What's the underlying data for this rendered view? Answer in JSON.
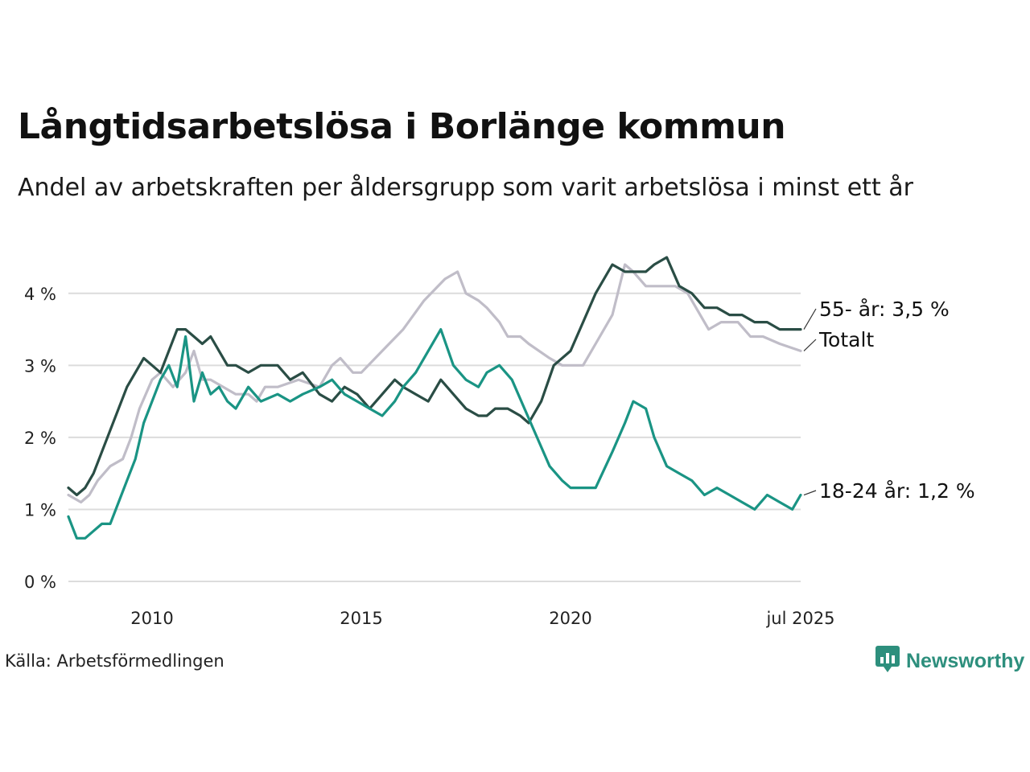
{
  "header": {
    "title": "Långtidsarbetslösa i Borlänge kommun",
    "subtitle": "Andel av arbetskraften per åldersgrupp som varit arbetslösa i minst ett år"
  },
  "footer": {
    "source": "Källa: Arbetsförmedlingen",
    "brand": "Newsworthy",
    "brand_icon": "newsworthy-logo-icon",
    "brand_color": "#2d8f7d"
  },
  "chart_data": {
    "type": "line",
    "title": "Långtidsarbetslösa i Borlänge kommun",
    "subtitle": "Andel av arbetskraften per åldersgrupp som varit arbetslösa i minst ett år",
    "xlabel": "",
    "ylabel": "",
    "xlim": [
      2008.0,
      2025.5
    ],
    "ylim": [
      0,
      4.5
    ],
    "y_ticks": [
      0,
      1,
      2,
      3,
      4
    ],
    "y_tick_labels": [
      "0 %",
      "1 %",
      "2 %",
      "3 %",
      "4 %"
    ],
    "x_ticks": [
      2010,
      2015,
      2020,
      2025.5
    ],
    "x_tick_labels": [
      "2010",
      "2015",
      "2020",
      "jul 2025"
    ],
    "grid": "horizontal",
    "legend": "direct labels at line ends (right)",
    "series": [
      {
        "name": "Totalt",
        "end_label": "Totalt",
        "color": "#c0bdc8",
        "x": [
          2008.0,
          2008.3,
          2008.5,
          2008.7,
          2009.0,
          2009.3,
          2009.5,
          2009.7,
          2010.0,
          2010.2,
          2010.5,
          2010.8,
          2011.0,
          2011.2,
          2011.4,
          2011.7,
          2012.0,
          2012.3,
          2012.5,
          2012.7,
          2013.0,
          2013.5,
          2014.0,
          2014.3,
          2014.5,
          2014.8,
          2015.0,
          2015.5,
          2016.0,
          2016.5,
          2017.0,
          2017.3,
          2017.5,
          2017.8,
          2018.0,
          2018.3,
          2018.5,
          2018.8,
          2019.0,
          2019.5,
          2019.8,
          2020.0,
          2020.3,
          2020.6,
          2021.0,
          2021.3,
          2021.5,
          2021.8,
          2022.0,
          2022.5,
          2022.8,
          2023.0,
          2023.3,
          2023.6,
          2024.0,
          2024.3,
          2024.6,
          2025.0,
          2025.5
        ],
        "y": [
          1.2,
          1.1,
          1.2,
          1.4,
          1.6,
          1.7,
          2.0,
          2.4,
          2.8,
          2.9,
          2.7,
          2.9,
          3.2,
          2.8,
          2.8,
          2.7,
          2.6,
          2.6,
          2.5,
          2.7,
          2.7,
          2.8,
          2.7,
          3.0,
          3.1,
          2.9,
          2.9,
          3.2,
          3.5,
          3.9,
          4.2,
          4.3,
          4.0,
          3.9,
          3.8,
          3.6,
          3.4,
          3.4,
          3.3,
          3.1,
          3.0,
          3.0,
          3.0,
          3.3,
          3.7,
          4.4,
          4.3,
          4.1,
          4.1,
          4.1,
          4.0,
          3.8,
          3.5,
          3.6,
          3.6,
          3.4,
          3.4,
          3.3,
          3.2
        ]
      },
      {
        "name": "55-",
        "end_label": "55- år: 3,5 %",
        "color": "#2a4d45",
        "x": [
          2008.0,
          2008.2,
          2008.4,
          2008.6,
          2008.8,
          2009.0,
          2009.2,
          2009.4,
          2009.6,
          2009.8,
          2010.0,
          2010.2,
          2010.4,
          2010.6,
          2010.8,
          2011.0,
          2011.2,
          2011.4,
          2011.6,
          2011.8,
          2012.0,
          2012.3,
          2012.6,
          2013.0,
          2013.3,
          2013.6,
          2014.0,
          2014.3,
          2014.6,
          2014.9,
          2015.2,
          2015.5,
          2015.8,
          2016.0,
          2016.3,
          2016.6,
          2016.9,
          2017.2,
          2017.5,
          2017.8,
          2018.0,
          2018.2,
          2018.5,
          2018.8,
          2019.0,
          2019.3,
          2019.6,
          2020.0,
          2020.3,
          2020.6,
          2021.0,
          2021.3,
          2021.5,
          2021.8,
          2022.0,
          2022.3,
          2022.6,
          2022.9,
          2023.2,
          2023.5,
          2023.8,
          2024.1,
          2024.4,
          2024.7,
          2025.0,
          2025.5
        ],
        "y": [
          1.3,
          1.2,
          1.3,
          1.5,
          1.8,
          2.1,
          2.4,
          2.7,
          2.9,
          3.1,
          3.0,
          2.9,
          3.2,
          3.5,
          3.5,
          3.4,
          3.3,
          3.4,
          3.2,
          3.0,
          3.0,
          2.9,
          3.0,
          3.0,
          2.8,
          2.9,
          2.6,
          2.5,
          2.7,
          2.6,
          2.4,
          2.6,
          2.8,
          2.7,
          2.6,
          2.5,
          2.8,
          2.6,
          2.4,
          2.3,
          2.3,
          2.4,
          2.4,
          2.3,
          2.2,
          2.5,
          3.0,
          3.2,
          3.6,
          4.0,
          4.4,
          4.3,
          4.3,
          4.3,
          4.4,
          4.5,
          4.1,
          4.0,
          3.8,
          3.8,
          3.7,
          3.7,
          3.6,
          3.6,
          3.5,
          3.5
        ]
      },
      {
        "name": "18-24",
        "end_label": "18-24 år: 1,2 %",
        "color": "#1a9484",
        "x": [
          2008.0,
          2008.2,
          2008.4,
          2008.6,
          2008.8,
          2009.0,
          2009.2,
          2009.4,
          2009.6,
          2009.8,
          2010.0,
          2010.2,
          2010.4,
          2010.6,
          2010.8,
          2011.0,
          2011.2,
          2011.4,
          2011.6,
          2011.8,
          2012.0,
          2012.3,
          2012.6,
          2013.0,
          2013.3,
          2013.6,
          2014.0,
          2014.3,
          2014.6,
          2014.9,
          2015.2,
          2015.5,
          2015.8,
          2016.0,
          2016.3,
          2016.6,
          2016.9,
          2017.2,
          2017.5,
          2017.8,
          2018.0,
          2018.3,
          2018.6,
          2018.9,
          2019.2,
          2019.5,
          2019.8,
          2020.0,
          2020.3,
          2020.6,
          2021.0,
          2021.3,
          2021.5,
          2021.8,
          2022.0,
          2022.3,
          2022.6,
          2022.9,
          2023.2,
          2023.5,
          2023.8,
          2024.1,
          2024.4,
          2024.7,
          2025.0,
          2025.3,
          2025.5
        ],
        "y": [
          0.9,
          0.6,
          0.6,
          0.7,
          0.8,
          0.8,
          1.1,
          1.4,
          1.7,
          2.2,
          2.5,
          2.8,
          3.0,
          2.7,
          3.4,
          2.5,
          2.9,
          2.6,
          2.7,
          2.5,
          2.4,
          2.7,
          2.5,
          2.6,
          2.5,
          2.6,
          2.7,
          2.8,
          2.6,
          2.5,
          2.4,
          2.3,
          2.5,
          2.7,
          2.9,
          3.2,
          3.5,
          3.0,
          2.8,
          2.7,
          2.9,
          3.0,
          2.8,
          2.4,
          2.0,
          1.6,
          1.4,
          1.3,
          1.3,
          1.3,
          1.8,
          2.2,
          2.5,
          2.4,
          2.0,
          1.6,
          1.5,
          1.4,
          1.2,
          1.3,
          1.2,
          1.1,
          1.0,
          1.2,
          1.1,
          1.0,
          1.2
        ]
      }
    ]
  }
}
